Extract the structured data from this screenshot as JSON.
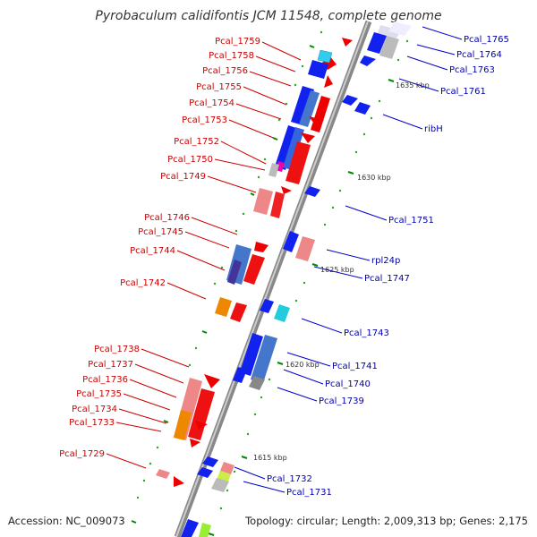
{
  "title": "Pyrobaculum calidifontis JCM 11548, complete genome",
  "footer": {
    "accession": "Accession: NC_009073",
    "topology": "Topology: circular; Length: 2,009,313 bp; Genes: 2,175"
  },
  "ticks": [
    "1635 kbp",
    "1630 kbp",
    "1625 kbp",
    "1620 kbp",
    "1615 kbp"
  ],
  "left_labels": [
    "Pcal_1759",
    "Pcal_1758",
    "Pcal_1756",
    "Pcal_1755",
    "Pcal_1754",
    "Pcal_1753",
    "Pcal_1752",
    "Pcal_1750",
    "Pcal_1749",
    "Pcal_1746",
    "Pcal_1745",
    "Pcal_1744",
    "Pcal_1742",
    "Pcal_1738",
    "Pcal_1737",
    "Pcal_1736",
    "Pcal_1735",
    "Pcal_1734",
    "Pcal_1733",
    "Pcal_1729"
  ],
  "right_labels": [
    "Pcal_1765",
    "Pcal_1764",
    "Pcal_1763",
    "Pcal_1761",
    "ribH",
    "Pcal_1751",
    "rpl24p",
    "Pcal_1747",
    "Pcal_1743",
    "Pcal_1741",
    "Pcal_1740",
    "Pcal_1739",
    "Pcal_1732",
    "Pcal_1731"
  ],
  "colors": {
    "forward": "#ee0000",
    "reverse": "#0000ee",
    "backbone": "#888888",
    "label_left": "#cc0000",
    "label_right": "#0000aa",
    "tick": "#008800"
  }
}
